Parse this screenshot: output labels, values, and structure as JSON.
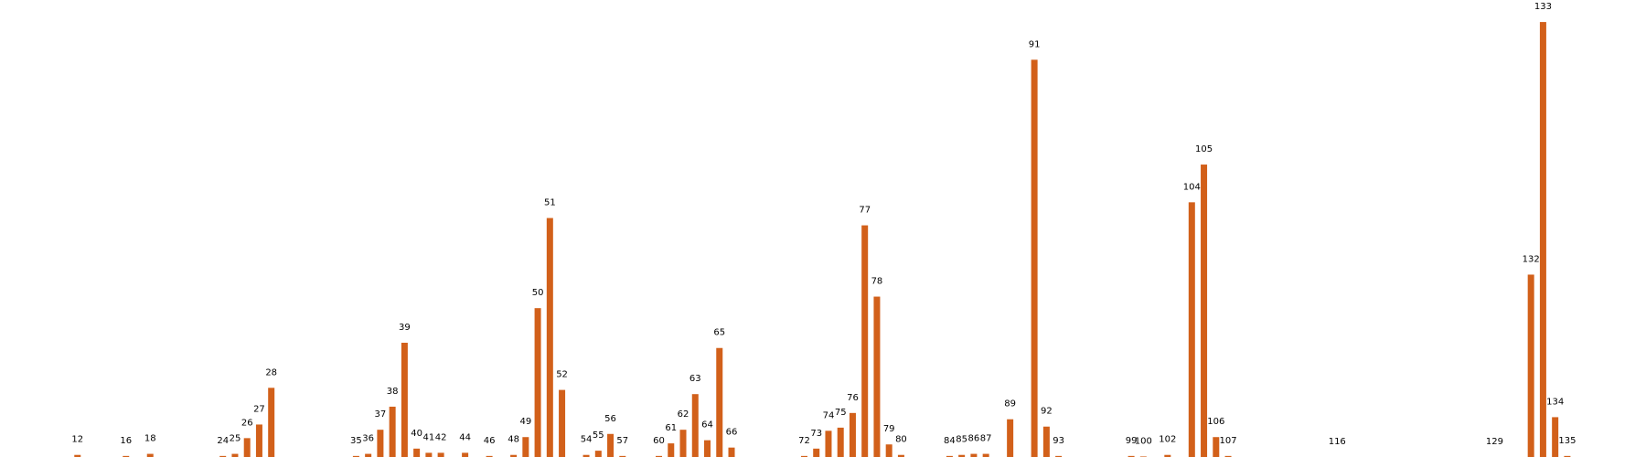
{
  "chart_data": {
    "type": "bar",
    "color": "#d2601a",
    "x": [
      12,
      16,
      18,
      24,
      25,
      26,
      27,
      28,
      35,
      36,
      37,
      38,
      39,
      40,
      41,
      42,
      44,
      46,
      48,
      49,
      50,
      51,
      52,
      54,
      55,
      56,
      57,
      60,
      61,
      62,
      63,
      64,
      65,
      66,
      72,
      73,
      74,
      75,
      76,
      77,
      78,
      79,
      80,
      84,
      85,
      86,
      87,
      89,
      91,
      92,
      93,
      99,
      100,
      102,
      104,
      105,
      106,
      107,
      116,
      129,
      132,
      133,
      134,
      135
    ],
    "values": [
      2,
      1,
      3,
      1,
      3,
      18,
      31,
      66,
      1,
      3,
      26,
      48,
      109,
      8,
      4,
      4,
      4,
      1,
      2,
      19,
      142,
      228,
      64,
      2,
      6,
      22,
      1,
      1,
      13,
      26,
      60,
      16,
      104,
      9,
      1,
      8,
      25,
      28,
      42,
      221,
      153,
      12,
      2,
      1,
      2,
      3,
      3,
      36,
      379,
      29,
      1,
      1,
      0.5,
      2,
      243,
      279,
      19,
      1,
      0,
      0,
      174,
      415,
      38,
      1
    ],
    "xlim": [
      5.6,
      141.5
    ],
    "ylim": [
      0,
      436
    ]
  }
}
